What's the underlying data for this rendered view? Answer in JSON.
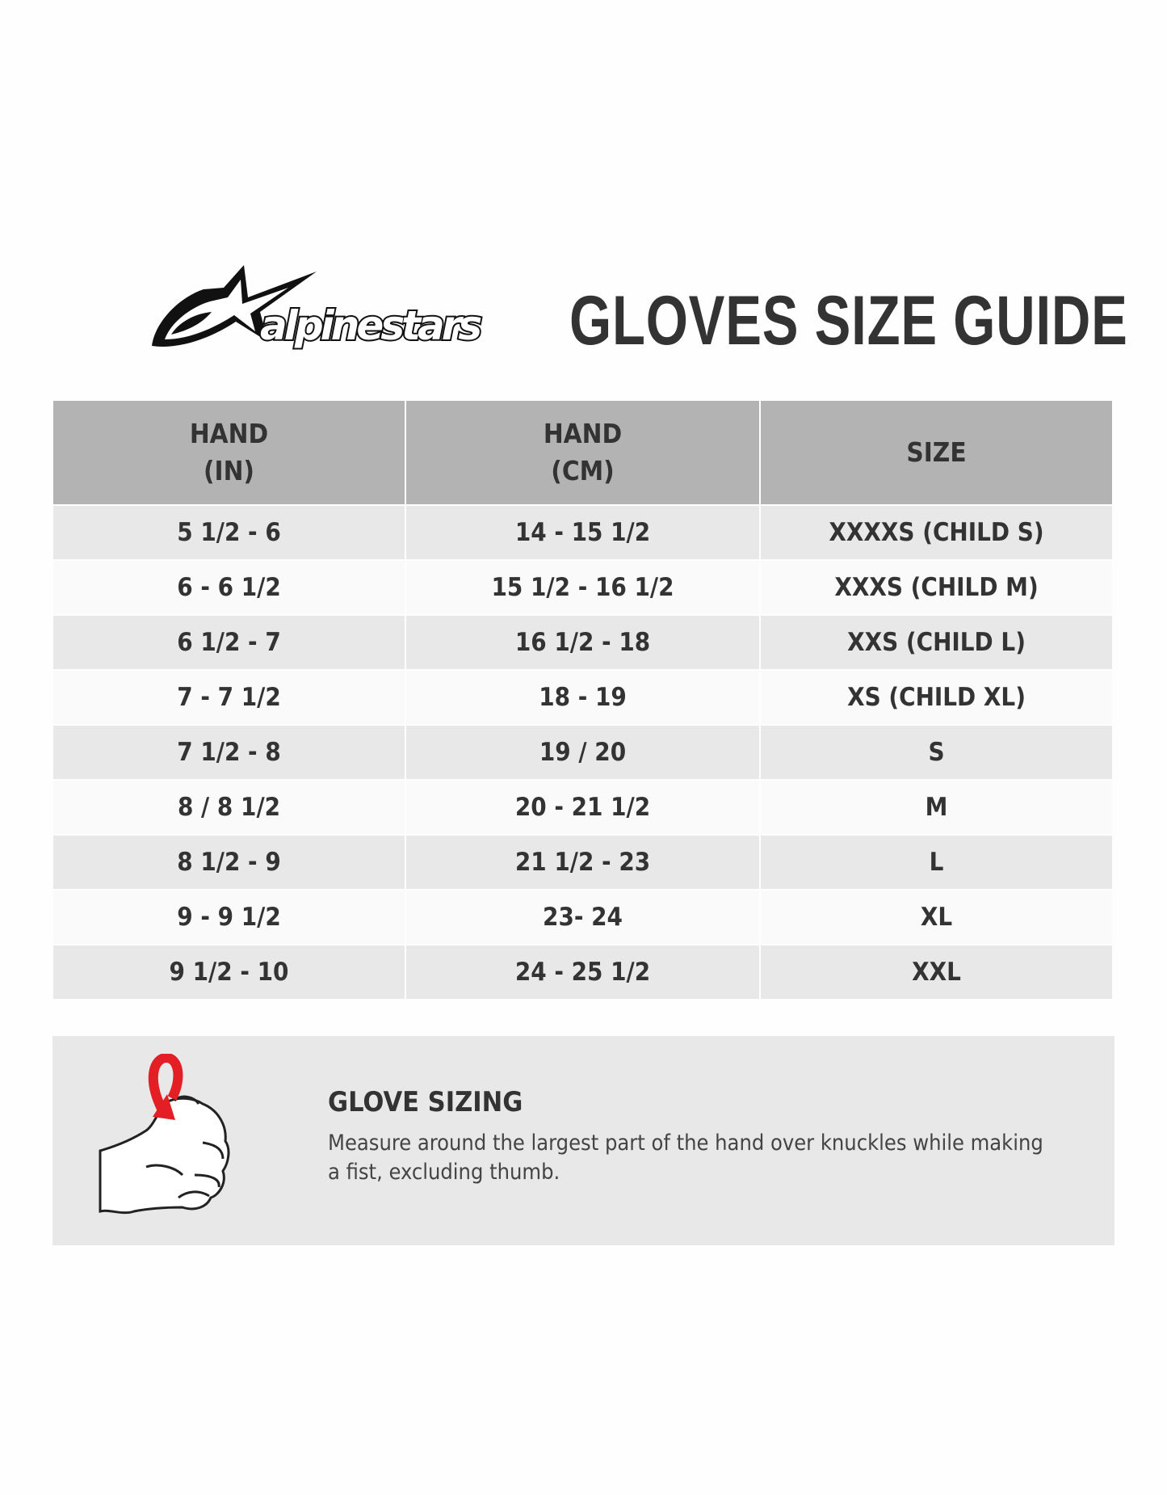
{
  "header": {
    "brand": "alpinestars",
    "title": "GLOVES SIZE GUIDE"
  },
  "table": {
    "columns": [
      "HAND\n(IN)",
      "HAND\n(CM)",
      "SIZE"
    ],
    "rows": [
      [
        "5 1/2 - 6",
        "14 - 15 1/2",
        "XXXXS (CHILD S)"
      ],
      [
        "6 - 6 1/2",
        "15 1/2 - 16 1/2",
        "XXXS (CHILD M)"
      ],
      [
        "6 1/2 - 7",
        "16 1/2 - 18",
        "XXS (CHILD L)"
      ],
      [
        "7 - 7 1/2",
        "18 - 19",
        "XS (CHILD XL)"
      ],
      [
        "7 1/2 - 8",
        "19 / 20",
        "S"
      ],
      [
        "8 / 8 1/2",
        "20 - 21 1/2",
        "M"
      ],
      [
        "8 1/2 - 9",
        "21 1/2 - 23",
        "L"
      ],
      [
        "9 - 9 1/2",
        "23- 24",
        "XL"
      ],
      [
        "9 1/2 - 10",
        "24 - 25 1/2",
        "XXL"
      ]
    ]
  },
  "info": {
    "heading": "GLOVE SIZING",
    "text": "Measure around the largest part of the hand over knuckles while making a fist, excluding thumb.",
    "icon": "hand-fist-measure-icon",
    "arrow_color": "#e31e24"
  },
  "colors": {
    "header_bg": "#b3b3b3",
    "row_odd": "#e8e8e8",
    "row_even": "#fafafa",
    "text": "#333333"
  }
}
